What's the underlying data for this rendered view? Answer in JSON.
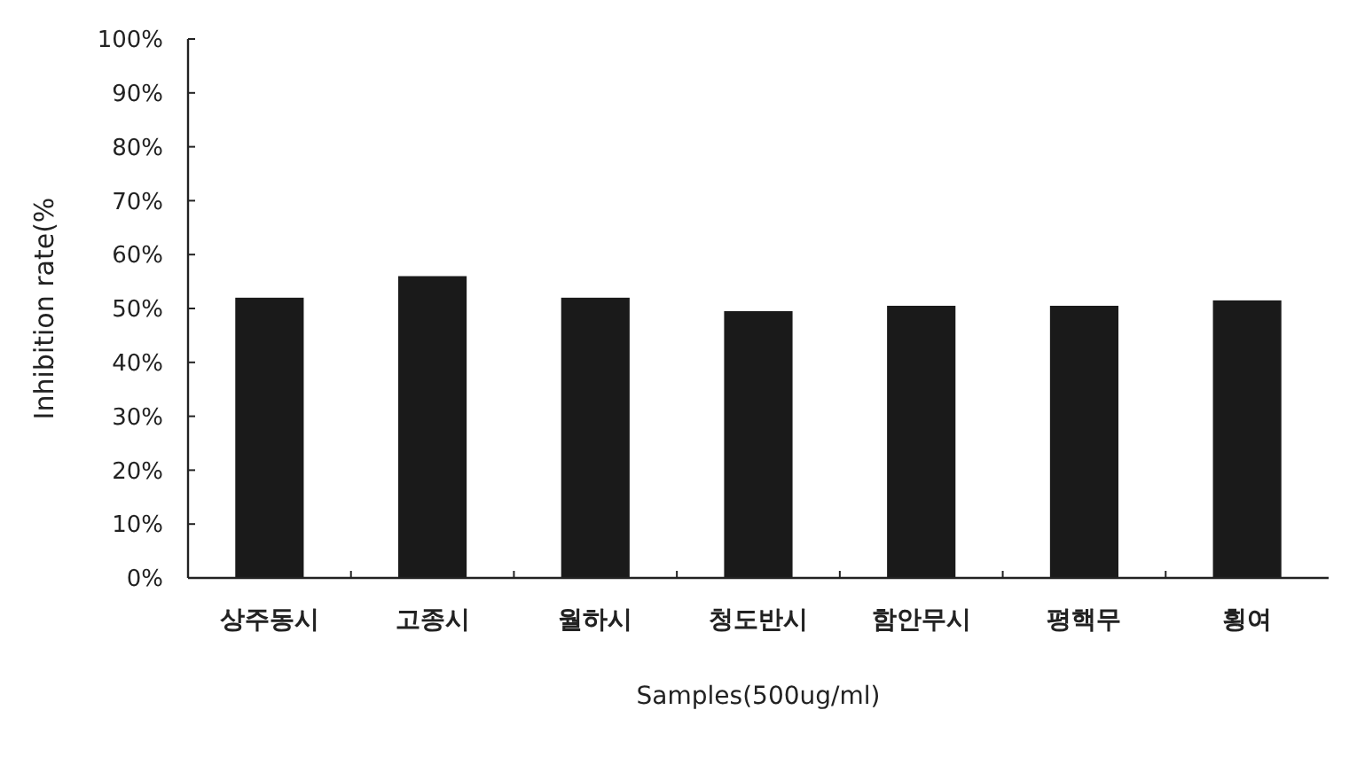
{
  "chart_data": {
    "type": "bar",
    "xlabel": "Samples(500ug/ml)",
    "ylabel": "Inhibition rate(%",
    "categories": [
      "상주동시",
      "고종시",
      "월하시",
      "청도반시",
      "함안무시",
      "평핵무",
      "횡여"
    ],
    "values": [
      52,
      56,
      52,
      49.5,
      50.5,
      50.5,
      51.5
    ],
    "color": "#1a1a1a",
    "ylim": [
      0,
      100
    ],
    "yticks": [
      {
        "value": 0,
        "label": "0%"
      },
      {
        "value": 10,
        "label": "10%"
      },
      {
        "value": 20,
        "label": "20%"
      },
      {
        "value": 30,
        "label": "30%"
      },
      {
        "value": 40,
        "label": "40%"
      },
      {
        "value": 50,
        "label": "50%"
      },
      {
        "value": 60,
        "label": "60%"
      },
      {
        "value": 70,
        "label": "70%"
      },
      {
        "value": 80,
        "label": "80%"
      },
      {
        "value": 90,
        "label": "90%"
      },
      {
        "value": 100,
        "label": "100%"
      }
    ],
    "grid": false
  }
}
